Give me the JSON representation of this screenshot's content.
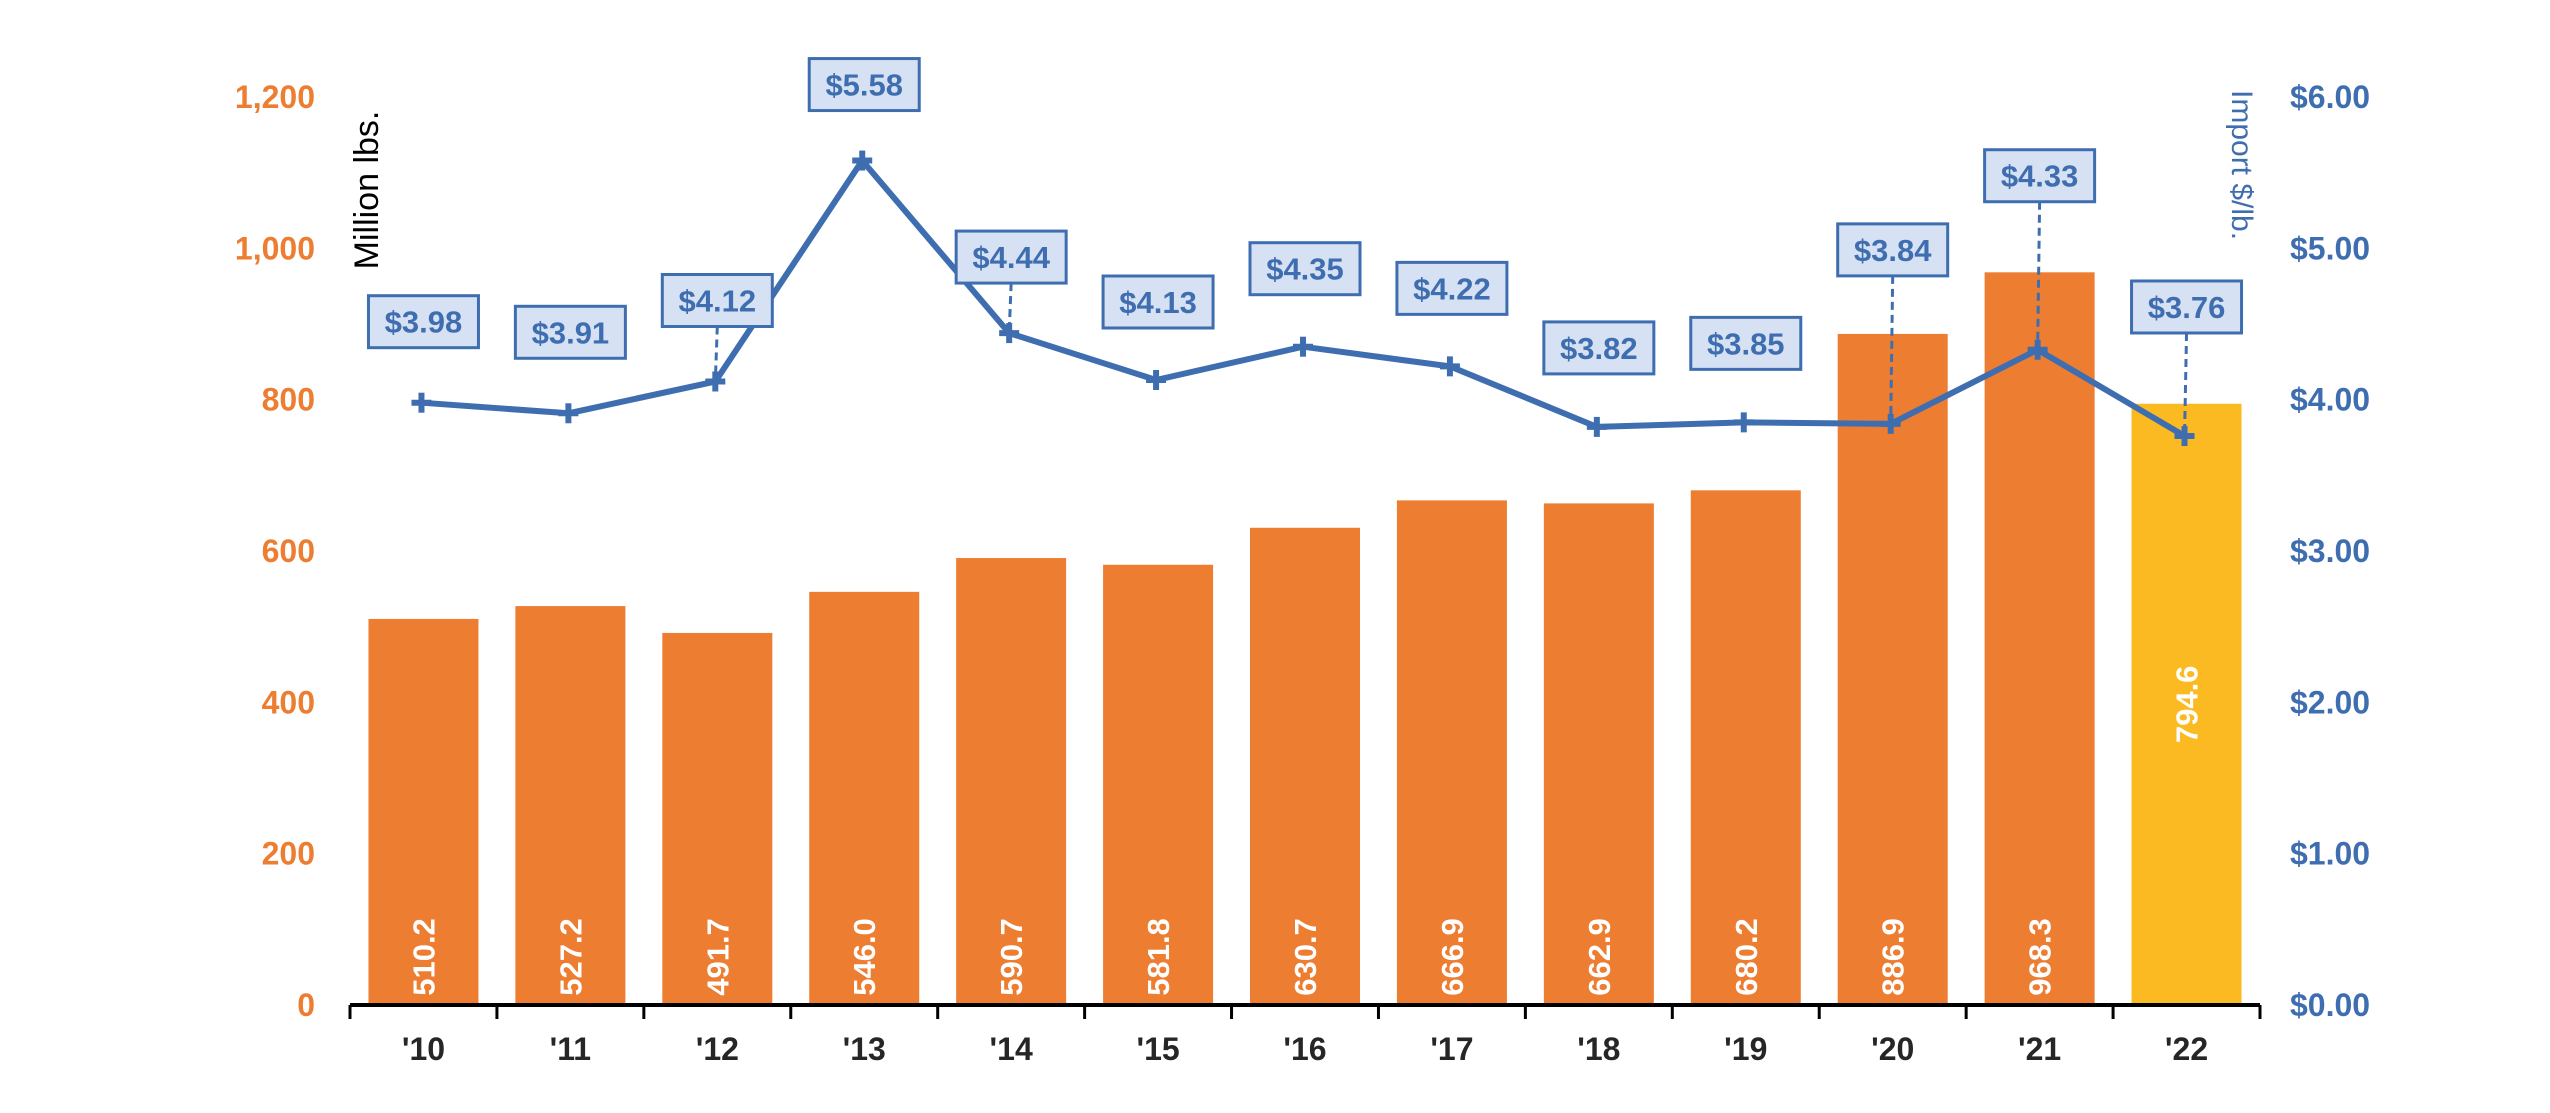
{
  "chart_data": {
    "type": "bar+line",
    "categories": [
      "'10",
      "'11",
      "'12",
      "'13",
      "'14",
      "'15",
      "'16",
      "'17",
      "'18",
      "'19",
      "'20",
      "'21",
      "'22"
    ],
    "series": [
      {
        "name": "Million lbs.",
        "type": "bar",
        "axis": "left",
        "values": [
          510.2,
          527.2,
          491.7,
          546.0,
          590.7,
          581.8,
          630.7,
          666.9,
          662.9,
          680.2,
          886.9,
          968.3,
          794.6
        ],
        "labels": [
          "510.2",
          "527.2",
          "491.7",
          "546.0",
          "590.7",
          "581.8",
          "630.7",
          "666.9",
          "662.9",
          "680.2",
          "886.9",
          "968.3",
          "794.6"
        ]
      },
      {
        "name": "Import $/lb.",
        "type": "line",
        "axis": "right",
        "values": [
          3.98,
          3.91,
          4.12,
          5.58,
          4.44,
          4.13,
          4.35,
          4.22,
          3.82,
          3.85,
          3.84,
          4.33,
          3.76
        ],
        "labels": [
          "$3.98",
          "$3.91",
          "$4.12",
          "$5.58",
          "$4.44",
          "$4.13",
          "$4.35",
          "$4.22",
          "$3.82",
          "$3.85",
          "$3.84",
          "$4.33",
          "$3.76"
        ]
      }
    ],
    "ylabel": "Million lbs.",
    "y2label": "Import $/lb.",
    "ylim": [
      0,
      1200
    ],
    "y2lim": [
      0,
      6
    ],
    "yticks": [
      "0",
      "200",
      "400",
      "600",
      "800",
      "1,000",
      "1,200"
    ],
    "y2ticks": [
      "$0.00",
      "$1.00",
      "$2.00",
      "$3.00",
      "$4.00",
      "$5.00",
      "$6.00"
    ],
    "grid": false,
    "colors": {
      "bar": "#ED7D31",
      "bar_highlight": "#FBBA22",
      "line": "#3F6EB0",
      "label_box_fill": "#D6E1F3",
      "left_axis": "#ED7D31",
      "right_axis": "#3F6EB0"
    }
  }
}
